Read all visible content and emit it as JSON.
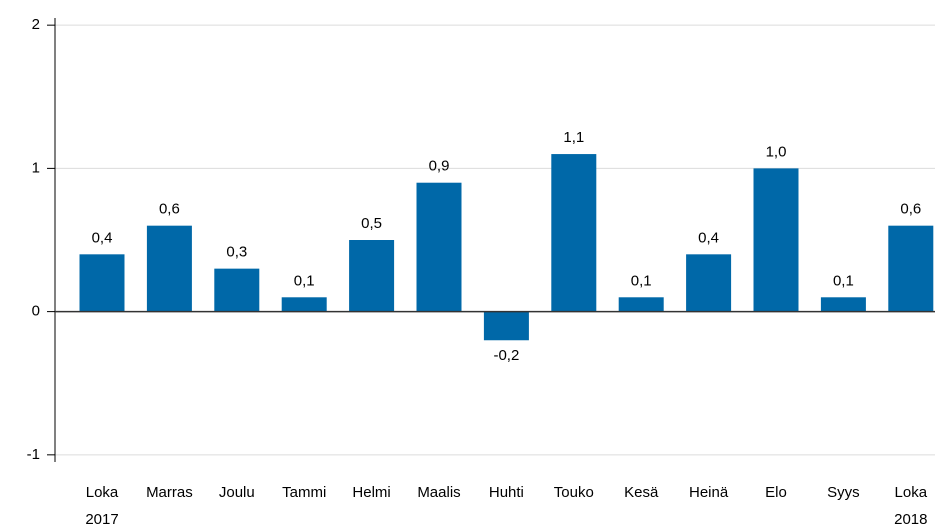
{
  "chart_data": {
    "type": "bar",
    "categories": [
      "Loka\n2017",
      "Marras",
      "Joulu",
      "Tammi",
      "Helmi",
      "Maalis",
      "Huhti",
      "Touko",
      "Kesä",
      "Heinä",
      "Elo",
      "Syys",
      "Loka\n2018"
    ],
    "values": [
      0.4,
      0.6,
      0.3,
      0.1,
      0.5,
      0.9,
      -0.2,
      1.1,
      0.1,
      0.4,
      1.0,
      0.1,
      0.6
    ],
    "value_labels": [
      "0,4",
      "0,6",
      "0,3",
      "0,1",
      "0,5",
      "0,9",
      "-0,2",
      "1,1",
      "0,1",
      "0,4",
      "1,0",
      "0,1",
      "0,6"
    ],
    "color": "#0068a8",
    "ylim": [
      -1.05,
      2.05
    ],
    "yticks": [
      -1,
      0,
      1,
      2
    ],
    "grid": true
  }
}
